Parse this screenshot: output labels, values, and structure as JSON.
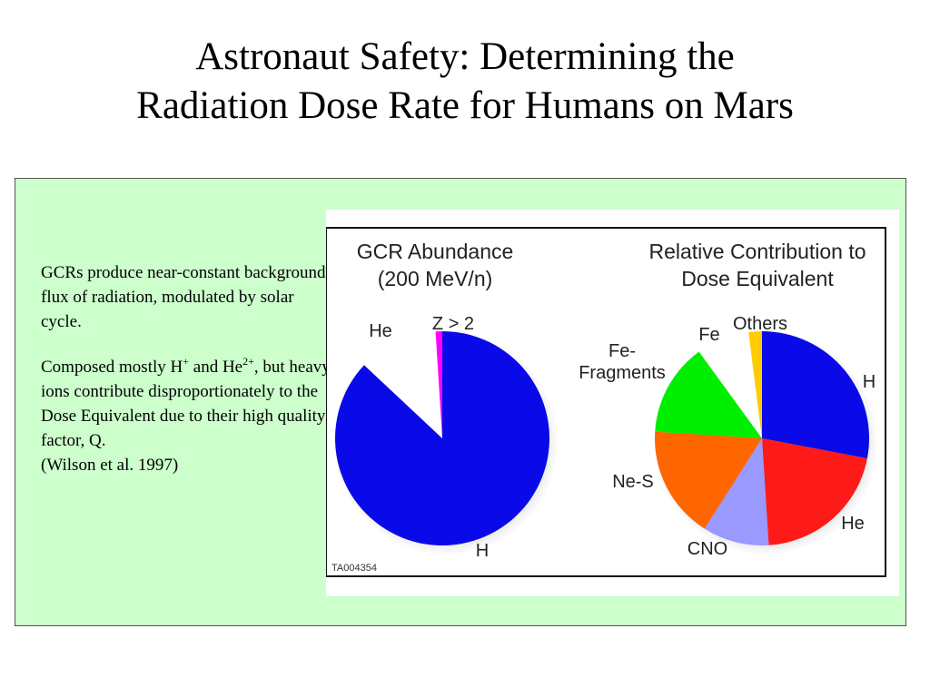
{
  "slide": {
    "title_line1": "Astronaut Safety: Determining the",
    "title_line2": "Radiation Dose Rate for Humans on Mars"
  },
  "text": {
    "para1": "GCRs produce near-constant background flux of radiation, modulated by solar cycle.",
    "para2_a": "Composed mostly H",
    "para2_sup1": "+",
    "para2_b": " and He",
    "para2_sup2": "2+",
    "para2_c": ", but heavy ions contribute disproportionately to the Dose Equivalent due to their high quality factor, Q.",
    "para3": "(Wilson et al. 1997)"
  },
  "figure": {
    "id_label": "TA004354"
  },
  "chart_data": [
    {
      "type": "pie",
      "title": "GCR Abundance",
      "subtitle": "(200 MeV/n)",
      "slices": [
        {
          "label": "H",
          "value": 87,
          "color": "#0a0ae8"
        },
        {
          "label": "He",
          "value": 12,
          "color": "#ffffff"
        },
        {
          "label": "Z > 2",
          "value": 1,
          "color": "#ff00ff"
        }
      ]
    },
    {
      "type": "pie",
      "title": "Relative Contribution to",
      "subtitle": "Dose Equivalent",
      "slices": [
        {
          "label": "H",
          "value": 28,
          "color": "#0a0ae8"
        },
        {
          "label": "He",
          "value": 21,
          "color": "#ff1a1a"
        },
        {
          "label": "CNO",
          "value": 10,
          "color": "#9999ff"
        },
        {
          "label": "Ne-S",
          "value": 17,
          "color": "#ff6600"
        },
        {
          "label": "Fe-Fragments",
          "value": 14,
          "color": "#00ee00"
        },
        {
          "label": "Fe",
          "value": 8,
          "color": "#ffffff"
        },
        {
          "label": "Others",
          "value": 2,
          "color": "#ffcc00"
        }
      ]
    }
  ]
}
